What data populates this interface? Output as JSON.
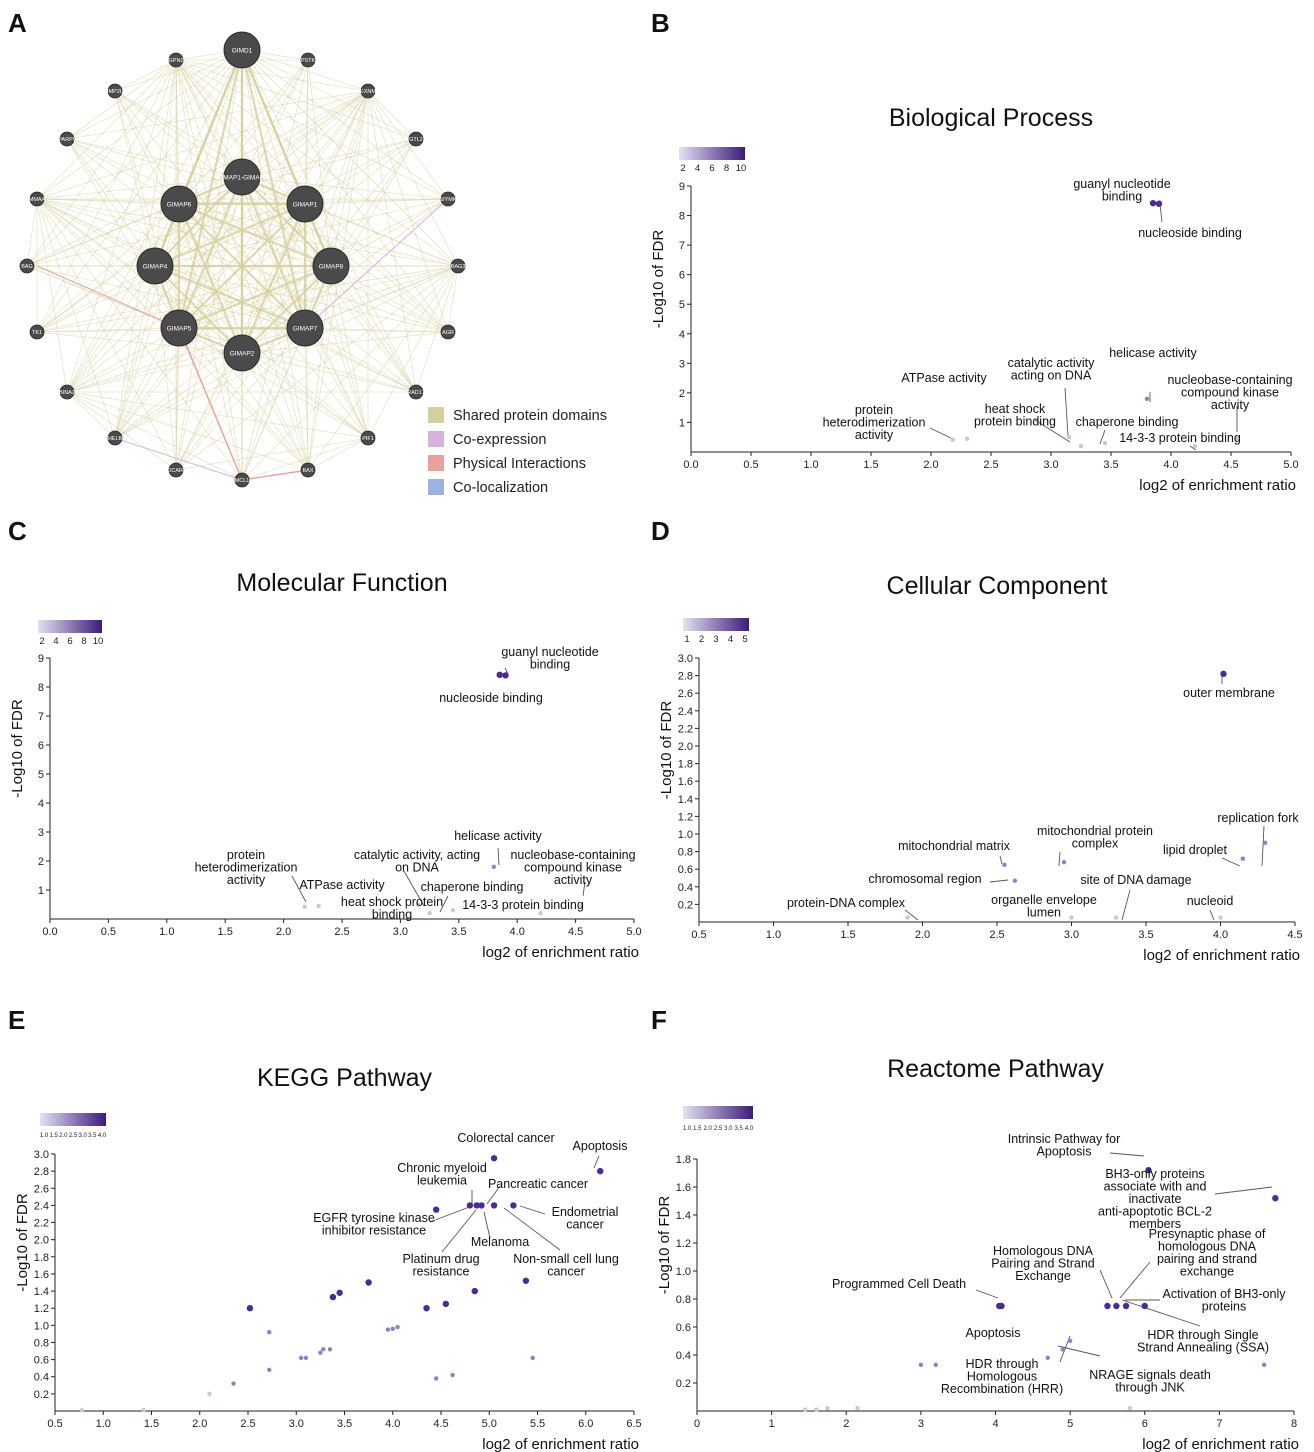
{
  "panel_letters": [
    "A",
    "B",
    "C",
    "D",
    "E",
    "F"
  ],
  "network": {
    "center_nodes": [
      "GIMD1",
      "GIMAP1-GIMAP5",
      "GIMAP6",
      "GIMAP1",
      "GIMAP4",
      "GIMAP8",
      "GIMAP5",
      "GIMAP7",
      "GIMAP2"
    ],
    "outer_nodes": [
      "GPN2",
      "PSTK",
      "MMP2L1",
      "EXNM",
      "PARP9",
      "GTL2",
      "MMAA",
      "SIYMK",
      "BAG",
      "BAG3",
      "TK1",
      "AGR",
      "BINA2",
      "RAD17",
      "HELB",
      "PIF1",
      "IDCAR5",
      "BAX",
      "MCL1"
    ],
    "legend": [
      {
        "label": "Shared protein domains",
        "color": "#d6cf9d"
      },
      {
        "label": "Co-expression",
        "color": "#d4b4d9"
      },
      {
        "label": "Physical Interactions",
        "color": "#eba0a0"
      },
      {
        "label": "Co-localization",
        "color": "#9db3df"
      }
    ]
  },
  "chart_data": [
    {
      "panel": "B",
      "type": "scatter",
      "title": "Biological Process",
      "xlabel": "log2 of enrichment ratio",
      "ylabel": "-Log10 of FDR",
      "xlim": [
        0,
        5
      ],
      "ylim": [
        0,
        9
      ],
      "xticks": [
        "0.0",
        "0.5",
        "1.0",
        "1.5",
        "2.0",
        "2.5",
        "3.0",
        "3.5",
        "4.0",
        "4.5",
        "5.0"
      ],
      "yticks": [
        "1",
        "2",
        "3",
        "4",
        "5",
        "6",
        "7",
        "8",
        "9"
      ],
      "colorbar_ticks": [
        "2",
        "4",
        "6",
        "8",
        "10"
      ],
      "points": [
        [
          3.85,
          8.42
        ],
        [
          3.9,
          8.4
        ],
        [
          2.18,
          0.42
        ],
        [
          2.3,
          0.45
        ],
        [
          3.8,
          1.8
        ],
        [
          3.15,
          0.5
        ],
        [
          3.25,
          0.2
        ],
        [
          3.45,
          0.3
        ],
        [
          4.2,
          0.2
        ],
        [
          4.55,
          0.45
        ]
      ],
      "annotations": [
        "guanyl nucleotide\nbinding",
        "nucleoside binding",
        "ATPase activity",
        "catalytic activity\nacting on DNA",
        "helicase activity",
        "protein\nheterodimerization\nactivity",
        "heat shock\nprotein binding",
        "chaperone binding",
        "nucleobase-containing\ncompound kinase\nactivity",
        "14-3-3 protein binding"
      ]
    },
    {
      "panel": "C",
      "type": "scatter",
      "title": "Molecular Function",
      "xlabel": "log2 of enrichment ratio",
      "ylabel": "-Log10 of FDR",
      "xlim": [
        0,
        5
      ],
      "ylim": [
        0,
        9
      ],
      "xticks": [
        "0.0",
        "0.5",
        "1.0",
        "1.5",
        "2.0",
        "2.5",
        "3.0",
        "3.5",
        "4.0",
        "4.5",
        "5.0"
      ],
      "yticks": [
        "1",
        "2",
        "3",
        "4",
        "5",
        "6",
        "7",
        "8",
        "9"
      ],
      "colorbar_ticks": [
        "2",
        "4",
        "6",
        "8",
        "10"
      ],
      "points": [
        [
          3.85,
          8.42
        ],
        [
          3.9,
          8.4
        ],
        [
          2.18,
          0.42
        ],
        [
          2.3,
          0.45
        ],
        [
          3.8,
          1.8
        ],
        [
          3.15,
          0.5
        ],
        [
          3.25,
          0.2
        ],
        [
          3.45,
          0.3
        ],
        [
          4.2,
          0.2
        ],
        [
          4.55,
          0.45
        ]
      ],
      "annotations": [
        "guanyl nucleotide\nbinding",
        "nucleoside binding",
        "helicase activity",
        "protein\nheterodimerization\nactivity",
        "catalytic activity, acting\non DNA",
        "nucleobase-containing\ncompound kinase\nactivity",
        "ATPase activity",
        "chaperone binding",
        "heat shock protein\nbinding",
        "14-3-3 protein binding"
      ]
    },
    {
      "panel": "D",
      "type": "scatter",
      "title": "Cellular Component",
      "xlabel": "log2 of enrichment ratio",
      "ylabel": "-Log10 of FDR",
      "xlim": [
        0.5,
        4.5
      ],
      "ylim": [
        0,
        3
      ],
      "xticks": [
        "0.5",
        "1.0",
        "1.5",
        "2.0",
        "2.5",
        "3.0",
        "3.5",
        "4.0",
        "4.5"
      ],
      "yticks": [
        "0.2",
        "0.4",
        "0.6",
        "0.8",
        "1.0",
        "1.2",
        "1.4",
        "1.6",
        "1.8",
        "2.0",
        "2.2",
        "2.4",
        "2.6",
        "2.8",
        "3.0"
      ],
      "colorbar_ticks": [
        "1",
        "2",
        "3",
        "4",
        "5"
      ],
      "points": [
        [
          4.02,
          2.82
        ],
        [
          2.55,
          0.65
        ],
        [
          2.62,
          0.47
        ],
        [
          2.95,
          0.68
        ],
        [
          1.9,
          0.05
        ],
        [
          3.3,
          0.05
        ],
        [
          4.15,
          0.72
        ],
        [
          4.3,
          0.9
        ],
        [
          4.0,
          0.05
        ],
        [
          3.0,
          0.05
        ]
      ],
      "annotations": [
        "outer membrane",
        "replication fork",
        "mitochondrial protein\ncomplex",
        "mitochondrial matrix",
        "lipid droplet",
        "chromosomal region",
        "site of DNA damage",
        "organelle envelope\nlumen",
        "protein-DNA complex",
        "nucleoid"
      ]
    },
    {
      "panel": "E",
      "type": "scatter",
      "title": "KEGG Pathway",
      "xlabel": "log2 of enrichment ratio",
      "ylabel": "-Log10 of FDR",
      "xlim": [
        0.5,
        6.5
      ],
      "ylim": [
        0,
        3
      ],
      "xticks": [
        "0.5",
        "1.0",
        "1.5",
        "2.0",
        "2.5",
        "3.0",
        "3.5",
        "4.0",
        "4.5",
        "5.0",
        "5.5",
        "6.0",
        "6.5"
      ],
      "yticks": [
        "0.2",
        "0.4",
        "0.6",
        "0.8",
        "1.0",
        "1.2",
        "1.4",
        "1.6",
        "1.8",
        "2.0",
        "2.2",
        "2.4",
        "2.6",
        "2.8",
        "3.0"
      ],
      "colorbar_ticks": [
        "1.0",
        "1.5",
        "2.0",
        "2.5",
        "3.0",
        "3.5",
        "4.0"
      ],
      "points": [
        [
          5.05,
          2.95
        ],
        [
          6.15,
          2.8
        ],
        [
          4.8,
          2.4
        ],
        [
          4.87,
          2.4
        ],
        [
          4.92,
          2.4
        ],
        [
          5.05,
          2.4
        ],
        [
          5.25,
          2.4
        ],
        [
          4.45,
          2.35
        ],
        [
          5.38,
          1.52
        ],
        [
          3.75,
          1.5
        ],
        [
          3.45,
          1.38
        ],
        [
          3.38,
          1.33
        ],
        [
          2.52,
          1.2
        ],
        [
          2.72,
          0.92
        ],
        [
          3.28,
          0.72
        ],
        [
          3.35,
          0.72
        ],
        [
          3.1,
          0.62
        ],
        [
          3.05,
          0.62
        ],
        [
          3.25,
          0.68
        ],
        [
          4.05,
          0.98
        ],
        [
          4.0,
          0.96
        ],
        [
          3.95,
          0.95
        ],
        [
          4.35,
          1.2
        ],
        [
          4.55,
          1.25
        ],
        [
          4.85,
          1.4
        ],
        [
          5.45,
          0.62
        ],
        [
          2.72,
          0.48
        ],
        [
          2.1,
          0.2
        ],
        [
          2.35,
          0.32
        ],
        [
          4.62,
          0.42
        ],
        [
          4.45,
          0.38
        ],
        [
          0.78,
          0.01
        ],
        [
          1.42,
          0.01
        ]
      ],
      "annotations": [
        "Colorectal cancer",
        "Apoptosis",
        "Chronic myeloid\nleukemia",
        "Pancreatic cancer",
        "EGFR tyrosine kinase\ninhibitor resistance",
        "Endometrial\ncancer",
        "Melanoma",
        "Platinum drug\nresistance",
        "Non-small cell lung\ncancer"
      ]
    },
    {
      "panel": "F",
      "type": "scatter",
      "title": "Reactome Pathway",
      "xlabel": "log2 of enrichment ratio",
      "ylabel": "-Log10 of FDR",
      "xlim": [
        0,
        8
      ],
      "ylim": [
        0,
        1.9
      ],
      "xticks": [
        "0",
        "1",
        "2",
        "3",
        "4",
        "5",
        "6",
        "7",
        "8"
      ],
      "yticks": [
        "0.2",
        "0.4",
        "0.6",
        "0.8",
        "1.0",
        "1.2",
        "1.4",
        "1.6",
        "1.8"
      ],
      "colorbar_ticks": [
        "1.0",
        "1.5",
        "2.0",
        "2.5",
        "3.0",
        "3.5",
        "4.0"
      ],
      "points": [
        [
          6.05,
          1.72
        ],
        [
          7.75,
          1.52
        ],
        [
          4.08,
          0.75
        ],
        [
          4.05,
          0.75
        ],
        [
          5.5,
          0.75
        ],
        [
          5.62,
          0.75
        ],
        [
          5.75,
          0.75
        ],
        [
          6.0,
          0.75
        ],
        [
          5.0,
          0.5
        ],
        [
          3.0,
          0.33
        ],
        [
          3.2,
          0.33
        ],
        [
          4.7,
          0.38
        ],
        [
          4.9,
          0.44
        ],
        [
          7.6,
          0.33
        ],
        [
          5.8,
          0.02
        ],
        [
          1.45,
          0.01
        ],
        [
          1.6,
          0.01
        ],
        [
          1.75,
          0.02
        ],
        [
          2.15,
          0.02
        ]
      ],
      "annotations": [
        "Intrinsic Pathway for\nApoptosis",
        "BH3-only proteins\nassociate with and\ninactivate\nanti-apoptotic BCL-2\nmembers",
        "Homologous DNA\nPairing and Strand\nExchange",
        "Presynaptic phase of\nhomologous DNA\npairing and strand\nexchange",
        "Programmed Cell Death",
        "Activation of BH3-only\nproteins",
        "Apoptosis",
        "HDR through Single\nStrand Annealing (SSA)",
        "HDR through\nHomologous\nRecombination (HRR)",
        "NRAGE signals death\nthrough JNK"
      ]
    }
  ]
}
